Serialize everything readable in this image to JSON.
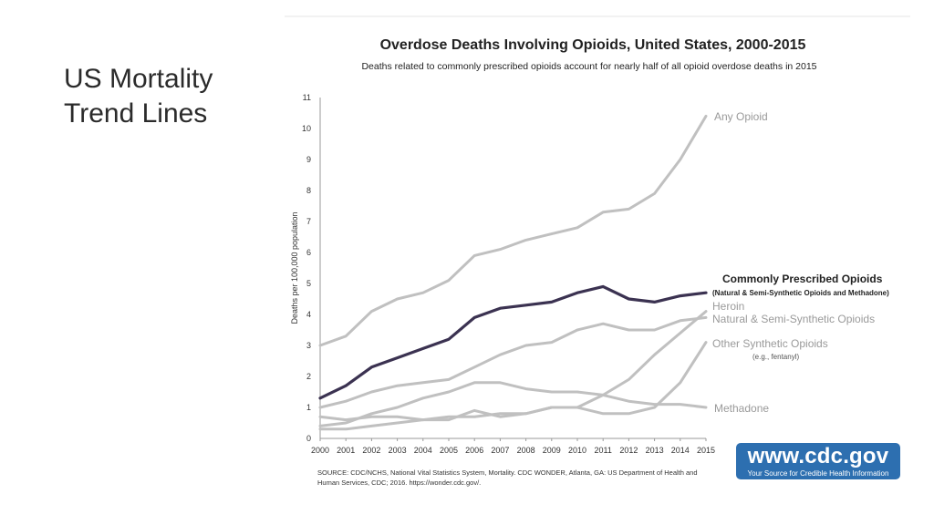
{
  "slide": {
    "title_line1": "US Mortality",
    "title_line2": "Trend Lines"
  },
  "chart_data": {
    "type": "line",
    "title": "Overdose Deaths Involving Opioids, United States, 2000-2015",
    "subtitle": "Deaths related to commonly prescribed opioids account for nearly half of all opioid overdose deaths in 2015",
    "ylabel": "Deaths per 100,000 population",
    "xlabel": "",
    "x": [
      2000,
      2001,
      2002,
      2003,
      2004,
      2005,
      2006,
      2007,
      2008,
      2009,
      2010,
      2011,
      2012,
      2013,
      2014,
      2015
    ],
    "ylim": [
      0,
      11
    ],
    "yticks": [
      0,
      1,
      2,
      3,
      4,
      5,
      6,
      7,
      8,
      9,
      10,
      11
    ],
    "grid": false,
    "colors": {
      "highlight": "#3b3251",
      "series": "#c0c0c0",
      "series_label": "#9a9a9a",
      "text": "#222222"
    },
    "series": [
      {
        "name": "Any Opioid",
        "highlight": false,
        "values": [
          3.0,
          3.3,
          4.1,
          4.5,
          4.7,
          5.1,
          5.9,
          6.1,
          6.4,
          6.6,
          6.8,
          7.3,
          7.4,
          7.9,
          9.0,
          10.4
        ]
      },
      {
        "name": "Natural & Semi-Synthetic Opioids",
        "highlight": false,
        "values": [
          1.0,
          1.2,
          1.5,
          1.7,
          1.8,
          1.9,
          2.3,
          2.7,
          3.0,
          3.1,
          3.5,
          3.7,
          3.5,
          3.5,
          3.8,
          3.9
        ]
      },
      {
        "name": "Heroin",
        "highlight": false,
        "values": [
          0.7,
          0.6,
          0.7,
          0.7,
          0.6,
          0.7,
          0.7,
          0.8,
          0.8,
          1.0,
          1.0,
          1.4,
          1.9,
          2.7,
          3.4,
          4.1
        ]
      },
      {
        "name": "Other Synthetic Opioids",
        "highlight": false,
        "values": [
          0.3,
          0.3,
          0.4,
          0.5,
          0.6,
          0.6,
          0.9,
          0.7,
          0.8,
          1.0,
          1.0,
          0.8,
          0.8,
          1.0,
          1.8,
          3.1
        ]
      },
      {
        "name": "Methadone",
        "highlight": false,
        "values": [
          0.4,
          0.5,
          0.8,
          1.0,
          1.3,
          1.5,
          1.8,
          1.8,
          1.6,
          1.5,
          1.5,
          1.4,
          1.2,
          1.1,
          1.1,
          1.0
        ]
      },
      {
        "name": "Commonly Prescribed Opioids",
        "highlight": true,
        "values": [
          1.3,
          1.7,
          2.3,
          2.6,
          2.9,
          3.2,
          3.9,
          4.2,
          4.3,
          4.4,
          4.7,
          4.9,
          4.5,
          4.4,
          4.6,
          4.7
        ]
      }
    ],
    "labels": [
      {
        "text": "Any Opioid",
        "series": "Any Opioid",
        "style": "series"
      },
      {
        "text": "Commonly Prescribed Opioids",
        "series": "Commonly Prescribed Opioids",
        "style": "highlight"
      },
      {
        "text": "(Natural & Semi-Synthetic Opioids and Methadone)",
        "series": "Commonly Prescribed Opioids",
        "style": "highlight-sub"
      },
      {
        "text": "Heroin",
        "series": "Heroin",
        "style": "series"
      },
      {
        "text": "Natural & Semi-Synthetic Opioids",
        "series": "Natural & Semi-Synthetic Opioids",
        "style": "series"
      },
      {
        "text": "Other Synthetic Opioids",
        "series": "Other Synthetic Opioids",
        "style": "series"
      },
      {
        "text": "(e.g., fentanyl)",
        "series": "Other Synthetic Opioids",
        "style": "sub"
      },
      {
        "text": "Methadone",
        "series": "Methadone",
        "style": "series"
      }
    ]
  },
  "source": {
    "line1": "SOURCE: CDC/NCHS, National Vital Statistics System, Mortality. CDC WONDER, Atlanta, GA: US Department of Health and",
    "line2": "Human Services, CDC; 2016. https://wonder.cdc.gov/."
  },
  "badge": {
    "url": "www.cdc.gov",
    "tagline": "Your Source for Credible Health Information"
  }
}
